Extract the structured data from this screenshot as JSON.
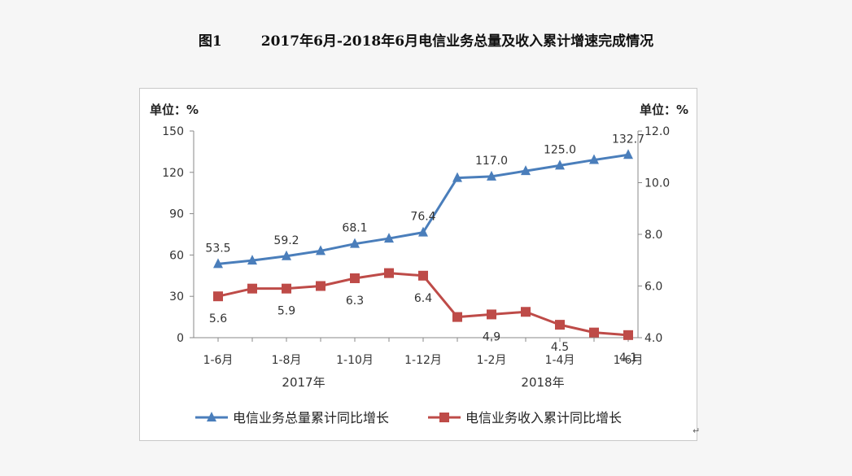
{
  "header": {
    "figure_label": "图1",
    "title_text": "2017年6月-2018年6月电信业务总量及收入累计增速完成情况"
  },
  "corner_mark": "↵",
  "chart_data": {
    "type": "line",
    "unit_left_label": "单位：%",
    "unit_right_label": "单位：%",
    "categories": [
      "2017-06",
      "2017-07",
      "2017-08",
      "2017-09",
      "2017-10",
      "2017-11",
      "2017-12",
      "2018-01",
      "2018-02",
      "2018-03",
      "2018-04",
      "2018-05",
      "2018-06"
    ],
    "x_tick_labels": [
      "1-6月",
      "",
      "1-8月",
      "",
      "1-10月",
      "",
      "1-12月",
      "",
      "1-2月",
      "",
      "1-4月",
      "",
      "1-6月"
    ],
    "year_labels": [
      {
        "text": "2017年",
        "center_index": 2.5
      },
      {
        "text": "2018年",
        "center_index": 9.5
      }
    ],
    "left_axis": {
      "ylim": [
        0,
        150
      ],
      "ticks": [
        "0",
        "30",
        "60",
        "90",
        "120",
        "150"
      ]
    },
    "right_axis": {
      "ylim": [
        4.0,
        12.0
      ],
      "ticks": [
        "4.0",
        "6.0",
        "8.0",
        "10.0",
        "12.0"
      ]
    },
    "grid": false,
    "legend_position": "bottom",
    "series": [
      {
        "name": "电信业务总量累计同比增长",
        "axis": "left",
        "color": "#4a7ebb",
        "marker": "triangle",
        "values": [
          53.5,
          56.0,
          59.2,
          63.0,
          68.1,
          72.0,
          76.4,
          116.0,
          117.0,
          121.0,
          125.0,
          129.0,
          132.7
        ],
        "data_labels": [
          {
            "index": 0,
            "text": "53.5"
          },
          {
            "index": 2,
            "text": "59.2"
          },
          {
            "index": 4,
            "text": "68.1"
          },
          {
            "index": 6,
            "text": "76.4"
          },
          {
            "index": 8,
            "text": "117.0"
          },
          {
            "index": 10,
            "text": "125.0"
          },
          {
            "index": 12,
            "text": "132.7"
          }
        ]
      },
      {
        "name": "电信业务收入累计同比增长",
        "axis": "right",
        "color": "#be4b48",
        "marker": "square",
        "values": [
          5.6,
          5.9,
          5.9,
          6.0,
          6.3,
          6.5,
          6.4,
          4.8,
          4.9,
          5.0,
          4.5,
          4.2,
          4.1
        ],
        "data_labels": [
          {
            "index": 0,
            "text": "5.6"
          },
          {
            "index": 2,
            "text": "5.9"
          },
          {
            "index": 4,
            "text": "6.3"
          },
          {
            "index": 6,
            "text": "6.4"
          },
          {
            "index": 8,
            "text": "4.9"
          },
          {
            "index": 10,
            "text": "4.5"
          },
          {
            "index": 12,
            "text": "4.1"
          }
        ]
      }
    ]
  }
}
